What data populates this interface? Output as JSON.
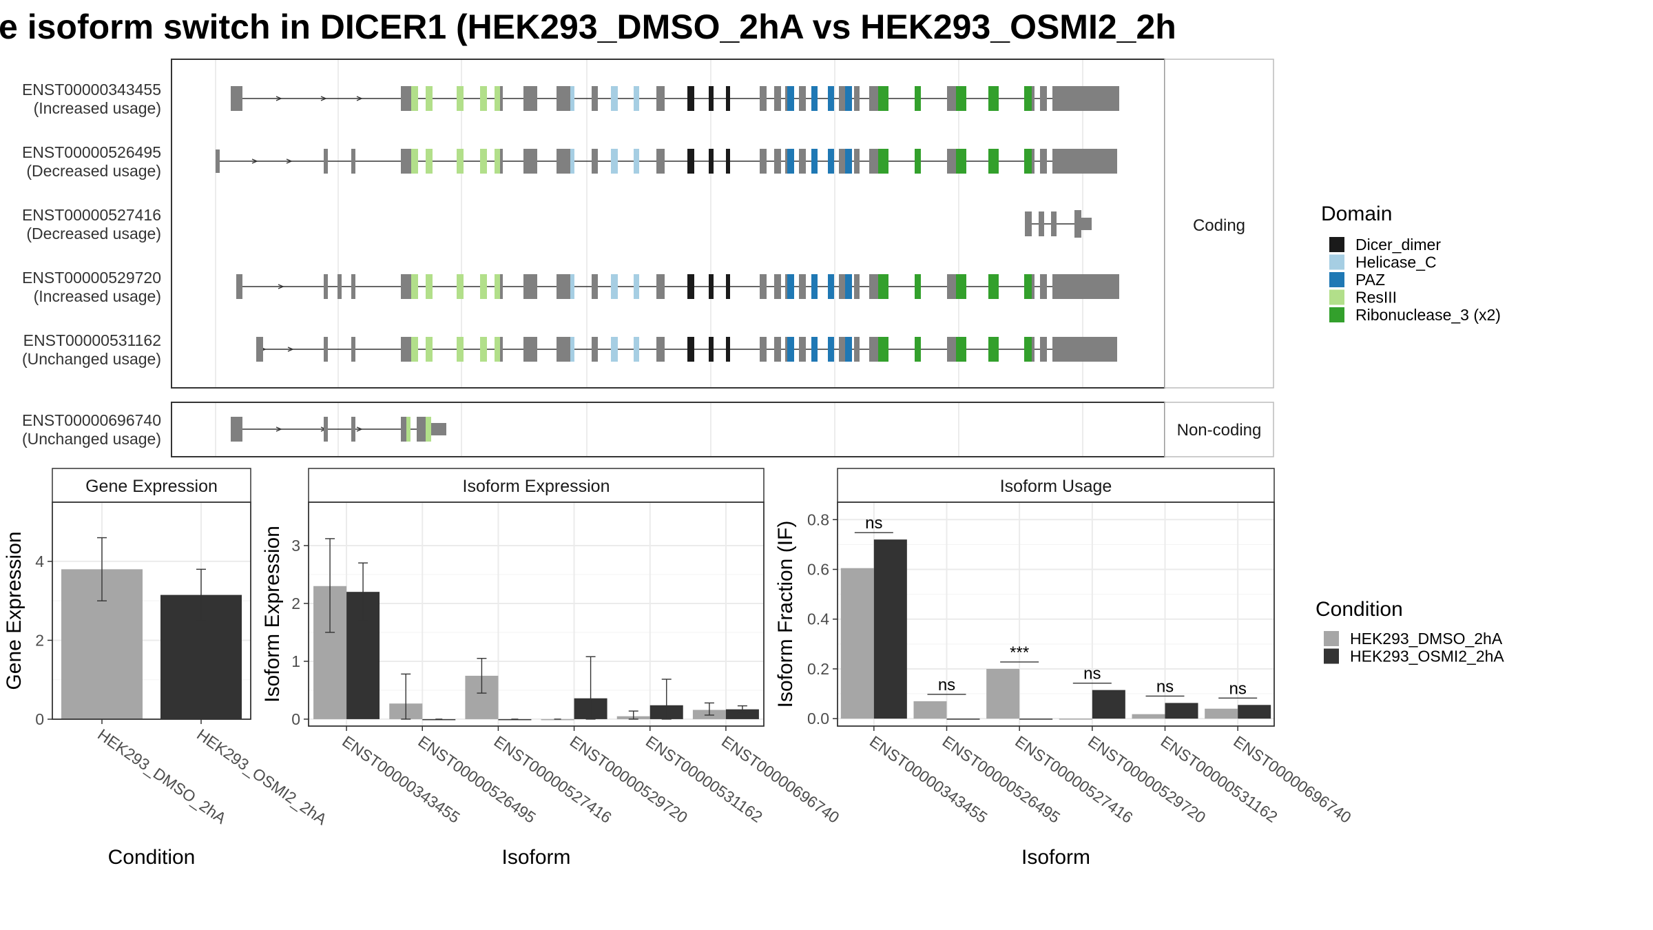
{
  "figure": {
    "title": "e isoform switch in DICER1 (HEK293_DMSO_2hA vs HEK293_OSMI2_2h",
    "colors": {
      "exon": "#808080",
      "Dicer_dimer": "#1a1a1a",
      "Helicase_C": "#a6cee3",
      "PAZ": "#1f78b4",
      "ResIII": "#b2df8a",
      "Ribonuclease_3": "#33a02c",
      "cond1": "#a6a6a6",
      "cond2": "#333333"
    }
  },
  "structure": {
    "coding_label": "Coding",
    "noncoding_label": "Non-coding",
    "transcripts": [
      {
        "id": "ENST00000343455",
        "usage": "(Increased usage)"
      },
      {
        "id": "ENST00000526495",
        "usage": "(Decreased usage)"
      },
      {
        "id": "ENST00000527416",
        "usage": "(Decreased usage)"
      },
      {
        "id": "ENST00000529720",
        "usage": "(Increased usage)"
      },
      {
        "id": "ENST00000531162",
        "usage": "(Unchanged usage)"
      }
    ],
    "noncoding_transcripts": [
      {
        "id": "ENST00000696740",
        "usage": "(Unchanged usage)"
      }
    ]
  },
  "legend_domain": {
    "title": "Domain",
    "items": [
      "Dicer_dimer",
      "Helicase_C",
      "PAZ",
      "ResIII",
      "Ribonuclease_3 (x2)"
    ]
  },
  "legend_condition": {
    "title": "Condition",
    "items": [
      "HEK293_DMSO_2hA",
      "HEK293_OSMI2_2hA"
    ]
  },
  "chart_data": [
    {
      "type": "bar",
      "title": "Gene Expression",
      "xlabel": "Condition",
      "ylabel": "Gene Expression",
      "categories": [
        "HEK293_DMSO_2hA",
        "HEK293_OSMI2_2hA"
      ],
      "values": [
        3.8,
        3.15
      ],
      "error_low": [
        3.0,
        2.5
      ],
      "error_high": [
        4.6,
        3.8
      ],
      "ylim": [
        0,
        5.5
      ],
      "yticks": [
        0,
        2,
        4
      ],
      "grid": true
    },
    {
      "type": "bar",
      "title": "Isoform Expression",
      "xlabel": "Isoform",
      "ylabel": "Isoform Expression",
      "categories": [
        "ENST00000343455",
        "ENST00000526495",
        "ENST00000527416",
        "ENST00000529720",
        "ENST00000531162",
        "ENST00000696740"
      ],
      "series": [
        {
          "name": "HEK293_DMSO_2hA",
          "values": [
            2.3,
            0.27,
            0.75,
            0.0,
            0.05,
            0.16
          ],
          "error_low": [
            1.5,
            0.0,
            0.45,
            0.0,
            0.0,
            0.07
          ],
          "error_high": [
            3.12,
            0.78,
            1.05,
            0.0,
            0.14,
            0.28
          ]
        },
        {
          "name": "HEK293_OSMI2_2hA",
          "values": [
            2.2,
            0.0,
            0.0,
            0.36,
            0.24,
            0.17
          ],
          "error_low": [
            1.7,
            0.0,
            0.0,
            0.0,
            0.0,
            0.1
          ],
          "error_high": [
            2.7,
            0.0,
            0.0,
            1.08,
            0.69,
            0.23
          ]
        }
      ],
      "ylim": [
        -0.12,
        3.75
      ],
      "yticks": [
        0,
        1,
        2,
        3
      ],
      "grid": true
    },
    {
      "type": "bar",
      "title": "Isoform Usage",
      "xlabel": "Isoform",
      "ylabel": "Isoform Fraction (IF)",
      "categories": [
        "ENST00000343455",
        "ENST00000526495",
        "ENST00000527416",
        "ENST00000529720",
        "ENST00000531162",
        "ENST00000696740"
      ],
      "series": [
        {
          "name": "HEK293_DMSO_2hA",
          "values": [
            0.605,
            0.07,
            0.2,
            0.0,
            0.018,
            0.04
          ]
        },
        {
          "name": "HEK293_OSMI2_2hA",
          "values": [
            0.72,
            0.0,
            0.0,
            0.115,
            0.063,
            0.055
          ]
        }
      ],
      "annotations": [
        "ns",
        "ns",
        "***",
        "ns",
        "ns",
        "ns"
      ],
      "ylim": [
        -0.03,
        0.87
      ],
      "yticks": [
        0.0,
        0.2,
        0.4,
        0.6,
        0.8
      ],
      "ytick_labels": [
        "0.0",
        "0.2",
        "0.4",
        "0.6",
        "0.8"
      ],
      "grid": true
    }
  ]
}
